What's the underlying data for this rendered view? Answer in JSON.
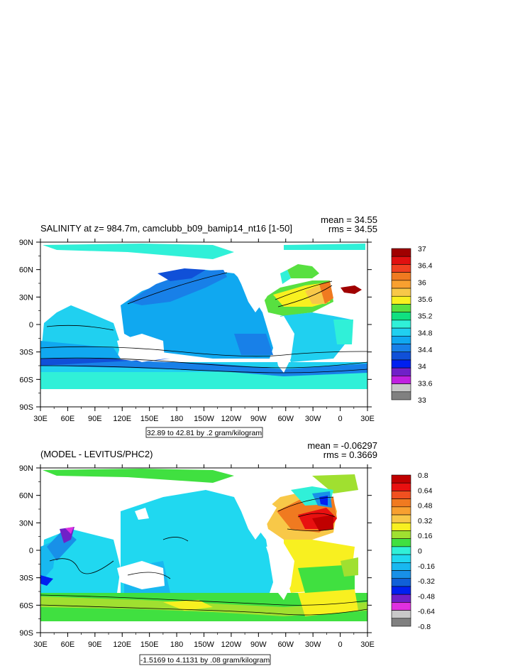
{
  "panels": [
    {
      "id": "top",
      "title": "SALINITY at z= 984.7m, camclubb_b09_bamip14_nt16 [1-50]",
      "mean_label": "mean = 34.55",
      "rms_label": "rms = 34.55",
      "range_label": "32.89 to 42.81 by .2 gram/kilogram",
      "colorbar_labels": [
        "37",
        "36.4",
        "36",
        "35.6",
        "35.2",
        "34.8",
        "34.4",
        "34",
        "33.6",
        "33"
      ],
      "colorbar_colors": [
        "#a00000",
        "#e01010",
        "#f04020",
        "#f07a20",
        "#f8a030",
        "#f8c848",
        "#f8f020",
        "#58e040",
        "#10e080",
        "#30f0d8",
        "#20d0f0",
        "#10a8f0",
        "#1880e8",
        "#1050d8",
        "#0020f0",
        "#7020c8",
        "#c020e0",
        "#c8c8c8",
        "#808080"
      ]
    },
    {
      "id": "bottom",
      "title": "(MODEL - LEVITUS/PHC2)",
      "mean_label": "mean = -0.06297",
      "rms_label": "rms = 0.3669",
      "range_label": "-1.5169 to 4.1131 by .08 gram/kilogram",
      "colorbar_labels": [
        "0.8",
        "0.64",
        "0.48",
        "0.32",
        "0.16",
        "0",
        "-0.16",
        "-0.32",
        "-0.48",
        "-0.64",
        "-0.8"
      ],
      "colorbar_colors": [
        "#c00000",
        "#e81010",
        "#f05020",
        "#f07a20",
        "#f8a030",
        "#f8c848",
        "#f8f020",
        "#a0e030",
        "#40e040",
        "#30f0d8",
        "#20d8f0",
        "#18b8f0",
        "#1890e8",
        "#1060d8",
        "#0020f0",
        "#7020c8",
        "#e030e0",
        "#c8c8c8",
        "#808080"
      ]
    }
  ],
  "chart_data": [
    {
      "type": "heatmap",
      "title": "SALINITY at z= 984.7m, camclubb_b09_bamip14_nt16 [1-50]",
      "subtitle": "mean = 34.55   rms = 34.55",
      "x_tick_labels": [
        "30E",
        "60E",
        "90E",
        "120E",
        "150E",
        "180",
        "150W",
        "120W",
        "90W",
        "60W",
        "30W",
        "0",
        "30E"
      ],
      "y_tick_labels": [
        "90N",
        "60N",
        "30N",
        "0",
        "30S",
        "60S",
        "90S"
      ],
      "xlim": [
        30,
        390
      ],
      "ylim": [
        -90,
        90
      ],
      "levels": [
        33,
        37
      ],
      "colorbar_labels": [
        "37",
        "36.4",
        "36",
        "35.6",
        "35.2",
        "34.8",
        "34.4",
        "34",
        "33.6",
        "33"
      ],
      "annotation": "32.89 to 42.81 by .2 gram/kilogram"
    },
    {
      "type": "heatmap",
      "title": "(MODEL - LEVITUS/PHC2)",
      "subtitle": "mean = -0.06297   rms = 0.3669",
      "x_tick_labels": [
        "30E",
        "60E",
        "90E",
        "120E",
        "150E",
        "180",
        "150W",
        "120W",
        "90W",
        "60W",
        "30W",
        "0",
        "30E"
      ],
      "y_tick_labels": [
        "90N",
        "60N",
        "30N",
        "0",
        "30S",
        "60S",
        "90S"
      ],
      "xlim": [
        30,
        390
      ],
      "ylim": [
        -90,
        90
      ],
      "levels": [
        -0.8,
        0.8
      ],
      "colorbar_labels": [
        "0.8",
        "0.64",
        "0.48",
        "0.32",
        "0.16",
        "0",
        "-0.16",
        "-0.32",
        "-0.48",
        "-0.64",
        "-0.8"
      ],
      "annotation": "-1.5169 to 4.1131 by .08 gram/kilogram"
    }
  ]
}
